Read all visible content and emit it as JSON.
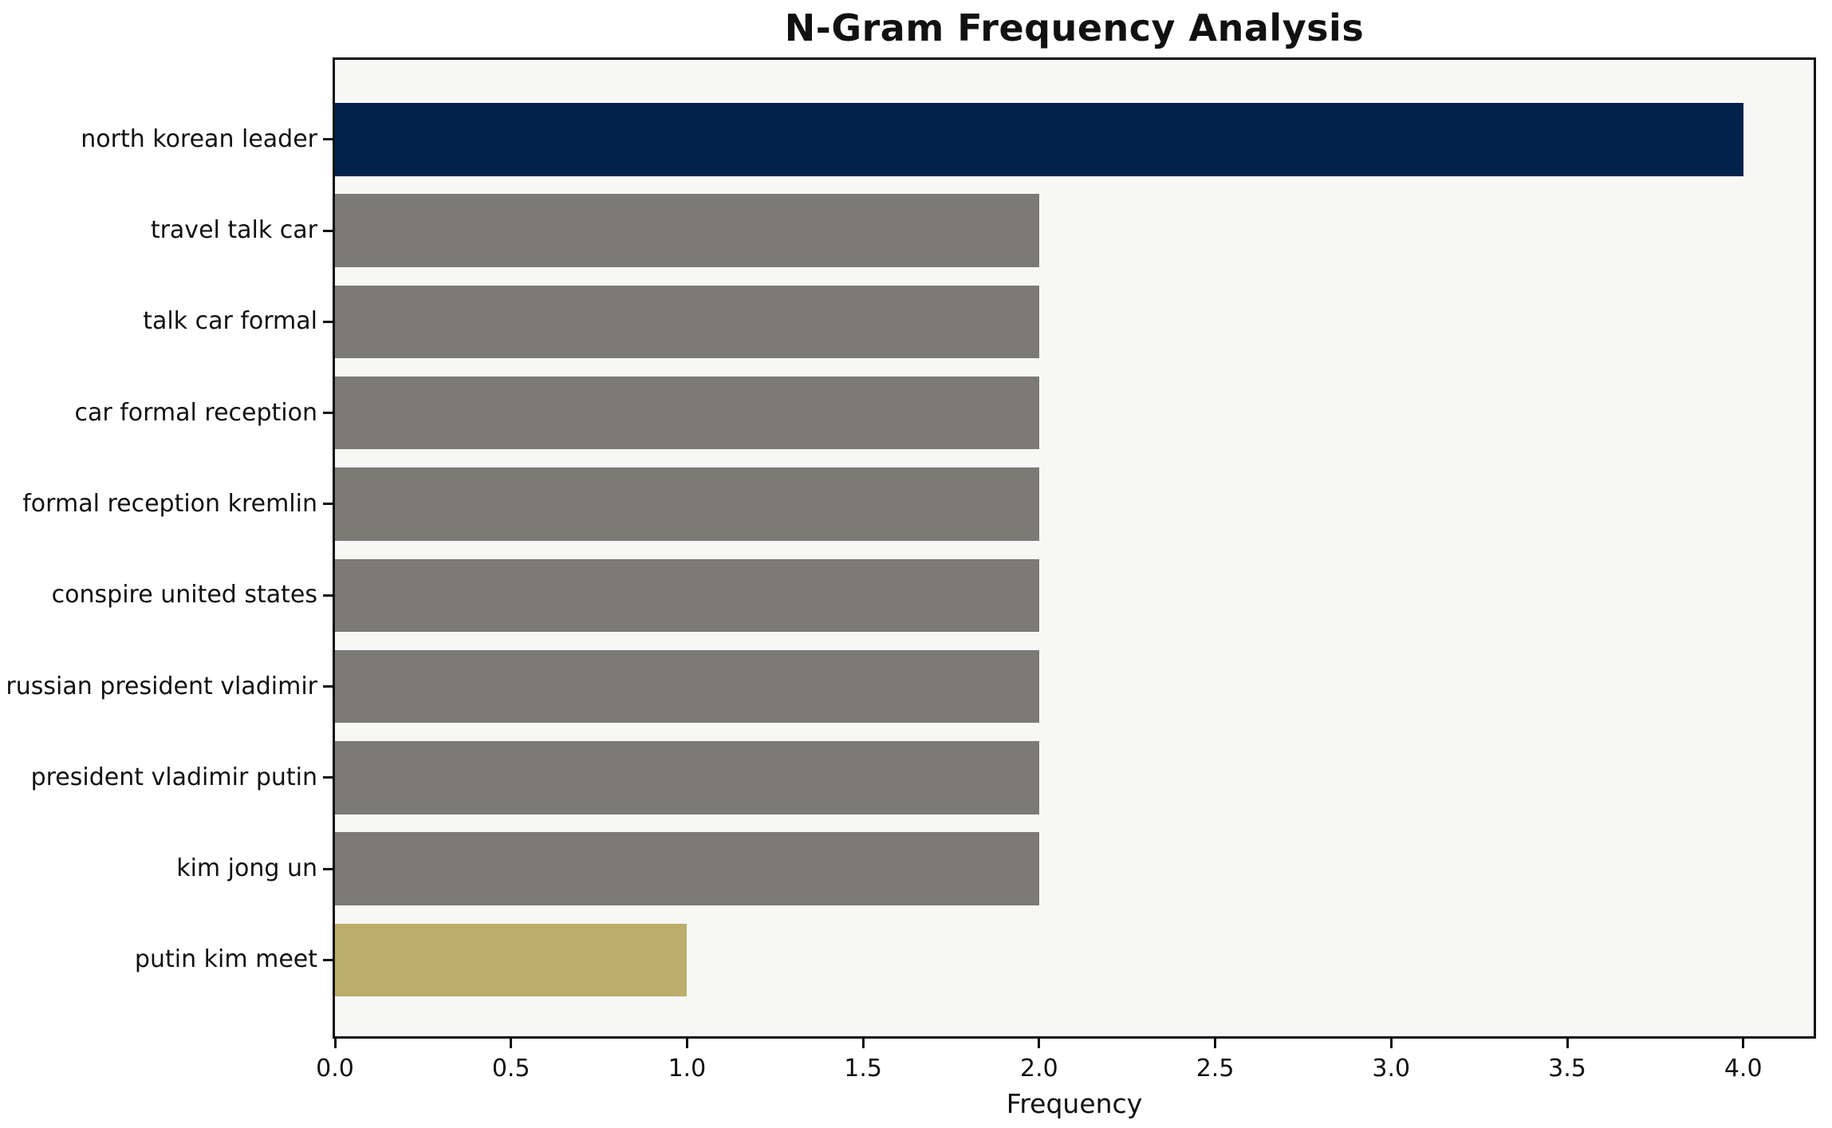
{
  "chart_data": {
    "type": "bar",
    "orientation": "horizontal",
    "title": "N-Gram Frequency Analysis",
    "xlabel": "Frequency",
    "ylabel": "",
    "categories": [
      "north korean leader",
      "travel talk car",
      "talk car formal",
      "car formal reception",
      "formal reception kremlin",
      "conspire united states",
      "russian president vladimir",
      "president vladimir putin",
      "kim jong un",
      "putin kim meet"
    ],
    "values": [
      4,
      2,
      2,
      2,
      2,
      2,
      2,
      2,
      2,
      1
    ],
    "bar_colors": [
      "#00224b",
      "#7b7a75",
      "#7b7a75",
      "#7b7a75",
      "#7b7a75",
      "#7b7a75",
      "#7b7a75",
      "#7b7a75",
      "#7b7a75",
      "#bcad6c"
    ],
    "x_ticks": [
      "0.0",
      "0.5",
      "1.0",
      "1.5",
      "2.0",
      "2.5",
      "3.0",
      "3.5",
      "4.0"
    ],
    "x_tick_values": [
      0.0,
      0.5,
      1.0,
      1.5,
      2.0,
      2.5,
      3.0,
      3.5,
      4.0
    ],
    "xlim": [
      0,
      4.2
    ],
    "grid": false,
    "legend": null,
    "plot_background": "#f7f7f6",
    "figure_background": "#ffffff",
    "spine_color": "#0f0f0f",
    "accent_color": "#00224b",
    "muted_color": "#7b7a75",
    "highlight_color": "#bcad6c"
  }
}
